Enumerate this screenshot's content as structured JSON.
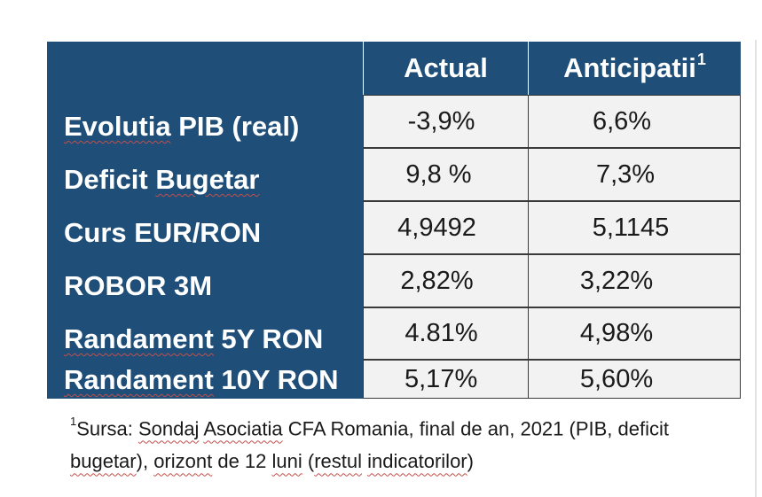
{
  "header": {
    "col_actual": "Actual",
    "col_anticipatii": "Anticipatii",
    "col_anticipatii_sup": "1"
  },
  "rows": [
    {
      "label": "Evolutia PIB (real)",
      "actual": "-3,9%",
      "anticipatii": "6,6%"
    },
    {
      "label": "Deficit Bugetar",
      "actual": "9,8 %",
      "anticipatii": "7,3%"
    },
    {
      "label": "Curs EUR/RON",
      "actual": "4,9492",
      "anticipatii": "5,1145"
    },
    {
      "label": "ROBOR 3M",
      "actual": "2,82%",
      "anticipatii": "3,22%"
    },
    {
      "label": "Randament 5Y RON",
      "actual": "4.81%",
      "anticipatii": "4,98%"
    },
    {
      "label": "Randament 10Y RON",
      "actual": "5,17%",
      "anticipatii": "5,60%"
    }
  ],
  "footnote": {
    "sup": "1",
    "line1": "Sursa: Sondaj Asociatia CFA Romania, final de an, 2021 (PIB, deficit",
    "line2": "bugetar), orizont de 12 luni (restul indicatorilor)"
  },
  "colors": {
    "header_bg": "#1f4e79",
    "cell_bg": "#f2f2f2",
    "spellcheck_underline": "#c0504d"
  }
}
